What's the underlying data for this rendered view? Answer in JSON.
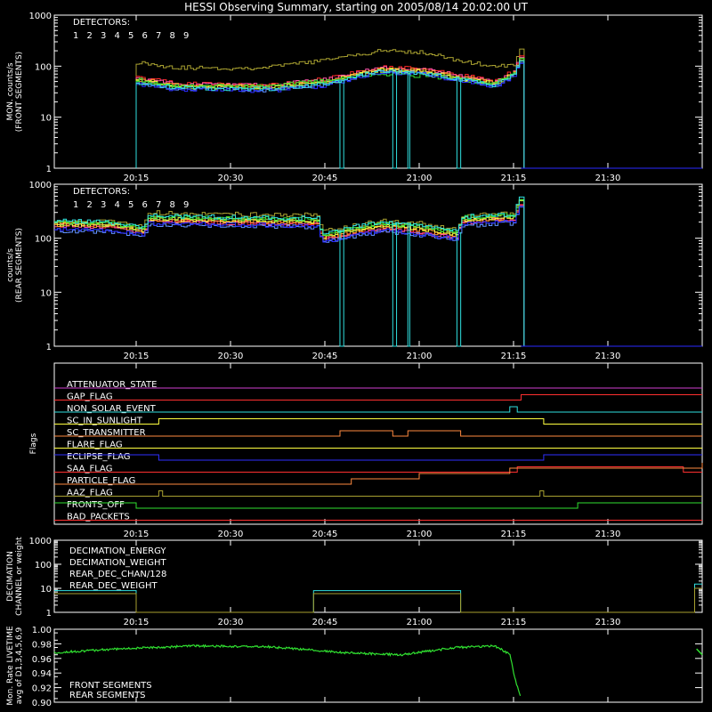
{
  "title": "HESSI Observing Summary, starting on 2005/08/14 20:02:00 UT",
  "colors": {
    "d1": "#ff2a2a",
    "d2": "#ff55aa",
    "d3": "#ff9a2a",
    "d4": "#ffff40",
    "d5": "#b0e040",
    "d6": "#30e030",
    "d7": "#30e0e0",
    "d8": "#6090ff",
    "d9": "#2a2aff",
    "olive": "#a8a030"
  },
  "time_axis": {
    "range_minutes": [
      20.033,
      21.75
    ],
    "tick_labels": [
      "20:15",
      "20:30",
      "20:45",
      "21:00",
      "21:15",
      "21:30"
    ],
    "tick_hours": [
      20.25,
      20.5,
      20.75,
      21.0,
      21.25,
      21.5
    ]
  },
  "chart_data": [
    {
      "type": "line",
      "name": "front",
      "ylabel_lines": [
        "MON. counts/s",
        "(FRONT SEGMENTS)"
      ],
      "yscale": "log",
      "ylim": [
        1,
        1000
      ],
      "yticks": [
        "1",
        "10",
        "100",
        "1000"
      ],
      "legend_title": "DETECTORS:",
      "legend_labels": [
        "1",
        "2",
        "3",
        "4",
        "5",
        "6",
        "7",
        "8",
        "9"
      ],
      "data_start_hour": 20.25,
      "data_end_hour": 21.27,
      "keyframes_hour": [
        20.25,
        20.35,
        20.5,
        20.6,
        20.75,
        20.9,
        21.0,
        21.1,
        21.2,
        21.25,
        21.27
      ],
      "series": [
        {
          "name": "1",
          "values": [
            60,
            46,
            44,
            43,
            55,
            95,
            90,
            68,
            50,
            80,
            170
          ]
        },
        {
          "name": "2",
          "values": [
            58,
            45,
            43,
            42,
            54,
            92,
            87,
            66,
            48,
            78,
            165
          ]
        },
        {
          "name": "3",
          "values": [
            55,
            43,
            41,
            40,
            50,
            88,
            84,
            63,
            46,
            75,
            160
          ]
        },
        {
          "name": "4",
          "values": [
            52,
            40,
            39,
            38,
            48,
            85,
            80,
            60,
            44,
            72,
            150
          ]
        },
        {
          "name": "5",
          "values": [
            50,
            39,
            38,
            37,
            46,
            82,
            78,
            58,
            43,
            70,
            145
          ]
        },
        {
          "name": "6",
          "values": [
            55,
            42,
            40,
            40,
            52,
            70,
            65,
            55,
            45,
            72,
            150
          ]
        },
        {
          "name": "7",
          "values": [
            48,
            38,
            36,
            36,
            44,
            80,
            75,
            56,
            42,
            68,
            140
          ]
        },
        {
          "name": "8",
          "values": [
            45,
            36,
            35,
            34,
            42,
            78,
            72,
            54,
            40,
            66,
            135
          ]
        },
        {
          "name": "9",
          "values": [
            44,
            35,
            34,
            33,
            41,
            76,
            70,
            52,
            39,
            64,
            130
          ]
        },
        {
          "name": "olive",
          "values": [
            120,
            95,
            90,
            95,
            130,
            200,
            190,
            130,
            95,
            110,
            250
          ]
        }
      ],
      "cyan_drop": [
        [
          20.79,
          20.8
        ],
        [
          20.93,
          20.94
        ],
        [
          20.97,
          20.975
        ],
        [
          21.1,
          21.11
        ]
      ]
    },
    {
      "type": "line",
      "name": "rear",
      "ylabel_lines": [
        "counts/s",
        "(REAR SEGMENTS)"
      ],
      "yscale": "log",
      "ylim": [
        1,
        1000
      ],
      "yticks": [
        "1",
        "10",
        "100",
        "1000"
      ],
      "legend_title": "DETECTORS:",
      "legend_labels": [
        "1",
        "2",
        "3",
        "4",
        "5",
        "6",
        "7",
        "8",
        "9"
      ],
      "keyframes_hour": [
        20.033,
        20.2,
        20.27,
        20.28,
        20.5,
        20.73,
        20.74,
        20.9,
        21.0,
        21.1,
        21.11,
        21.25,
        21.27
      ],
      "series": [
        {
          "name": "1",
          "values": [
            175,
            165,
            130,
            210,
            195,
            185,
            95,
            150,
            130,
            105,
            200,
            230,
            520
          ]
        },
        {
          "name": "2",
          "values": [
            170,
            160,
            125,
            205,
            190,
            180,
            92,
            145,
            125,
            100,
            195,
            225,
            510
          ]
        },
        {
          "name": "3",
          "values": [
            180,
            170,
            135,
            220,
            205,
            195,
            100,
            160,
            140,
            110,
            210,
            240,
            540
          ]
        },
        {
          "name": "4",
          "values": [
            185,
            175,
            138,
            230,
            215,
            205,
            105,
            170,
            150,
            115,
            220,
            250,
            560
          ]
        },
        {
          "name": "5",
          "values": [
            190,
            178,
            140,
            240,
            225,
            215,
            110,
            180,
            160,
            120,
            230,
            260,
            580
          ]
        },
        {
          "name": "6",
          "values": [
            200,
            185,
            145,
            250,
            235,
            225,
            115,
            190,
            170,
            125,
            240,
            270,
            600
          ]
        },
        {
          "name": "7",
          "values": [
            210,
            195,
            150,
            260,
            245,
            235,
            120,
            200,
            180,
            130,
            250,
            280,
            620
          ]
        },
        {
          "name": "8",
          "values": [
            140,
            130,
            105,
            180,
            170,
            160,
            80,
            130,
            115,
            90,
            170,
            190,
            430
          ]
        },
        {
          "name": "9",
          "values": [
            150,
            140,
            110,
            190,
            180,
            170,
            85,
            140,
            120,
            95,
            180,
            200,
            450
          ]
        },
        {
          "name": "olive",
          "values": [
            210,
            200,
            160,
            300,
            280,
            270,
            130,
            210,
            190,
            140,
            260,
            290,
            600
          ]
        }
      ],
      "cyan_drop": [
        [
          20.79,
          20.8
        ],
        [
          20.93,
          20.94
        ],
        [
          20.97,
          20.975
        ],
        [
          21.1,
          21.11
        ]
      ]
    },
    {
      "type": "step",
      "name": "flags",
      "ylabel": "Flags",
      "flags": [
        {
          "label": "ATTENUATOR_STATE",
          "color": "#d040d0",
          "steps": [
            [
              20.033,
              0
            ]
          ]
        },
        {
          "label": "GAP_FLAG",
          "color": "#ff3030",
          "steps": [
            [
              20.033,
              0
            ],
            [
              21.27,
              1
            ]
          ]
        },
        {
          "label": "NON_SOLAR_EVENT",
          "color": "#30e0e0",
          "steps": [
            [
              20.033,
              0
            ],
            [
              21.24,
              1
            ],
            [
              21.26,
              0
            ]
          ]
        },
        {
          "label": "SC_IN_SUNLIGHT",
          "color": "#ffff40",
          "steps": [
            [
              20.033,
              0
            ],
            [
              20.31,
              1
            ],
            [
              21.33,
              0
            ]
          ]
        },
        {
          "label": "SC_TRANSMITTER",
          "color": "#ff8a40",
          "steps": [
            [
              20.033,
              0
            ],
            [
              20.79,
              1
            ],
            [
              20.93,
              0
            ],
            [
              20.97,
              1
            ],
            [
              21.11,
              0
            ]
          ]
        },
        {
          "label": "FLARE_FLAG",
          "color": "#ffff40",
          "steps": [
            [
              20.033,
              0
            ]
          ]
        },
        {
          "label": "ECLIPSE_FLAG",
          "color": "#3030ff",
          "steps": [
            [
              20.033,
              1
            ],
            [
              20.31,
              0
            ],
            [
              21.33,
              1
            ]
          ]
        },
        {
          "label": "SAA_FLAG",
          "color": "#ff3030",
          "steps": [
            [
              20.033,
              0
            ],
            [
              21.26,
              1
            ],
            [
              21.7,
              0
            ]
          ]
        },
        {
          "label": "PARTICLE_FLAG",
          "color": "#ff8a40",
          "steps": [
            [
              20.033,
              0
            ],
            [
              20.82,
              1
            ],
            [
              21.0,
              2
            ],
            [
              21.24,
              3
            ],
            [
              21.75,
              4
            ]
          ]
        },
        {
          "label": "AAZ_FLAG",
          "color": "#a8a030",
          "steps": [
            [
              20.033,
              0
            ],
            [
              20.31,
              1
            ],
            [
              20.32,
              0
            ],
            [
              21.32,
              1
            ],
            [
              21.33,
              0
            ]
          ]
        },
        {
          "label": "FRONTS_OFF",
          "color": "#30e030",
          "steps": [
            [
              20.033,
              1
            ],
            [
              20.25,
              0
            ],
            [
              21.42,
              1
            ]
          ]
        },
        {
          "label": "BAD_PACKETS",
          "color": "#ff3030",
          "steps": [
            [
              20.033,
              0
            ]
          ]
        }
      ]
    },
    {
      "type": "step",
      "name": "decimation",
      "ylabel_lines": [
        "DECIMATION",
        "CHANNEL or weight"
      ],
      "yscale": "log",
      "ylim": [
        1,
        1000
      ],
      "yticks": [
        "1",
        "10",
        "100",
        "1000"
      ],
      "legend": [
        {
          "label": "DECIMATION_ENERGY",
          "color": "#30e030"
        },
        {
          "label": "DECIMATION_WEIGHT",
          "color": "#ff8a40"
        },
        {
          "label": "REAR_DEC_CHAN/128",
          "color": "#30e0e0"
        },
        {
          "label": "REAR_DEC_WEIGHT",
          "color": "#a8a030"
        }
      ],
      "series": [
        {
          "name": "REAR_DEC_CHAN/128",
          "steps": [
            [
              20.033,
              8
            ],
            [
              20.25,
              1
            ],
            [
              20.72,
              8
            ],
            [
              21.11,
              1
            ],
            [
              21.73,
              15
            ]
          ]
        },
        {
          "name": "REAR_DEC_WEIGHT",
          "steps": [
            [
              20.033,
              6
            ],
            [
              20.25,
              1
            ],
            [
              20.72,
              6
            ],
            [
              21.11,
              1
            ],
            [
              21.73,
              10
            ]
          ]
        }
      ]
    },
    {
      "type": "line",
      "name": "livetime",
      "ylabel_lines": [
        "Mon. Rate LIVETIME",
        "avg of D1,3,4,5,6,9"
      ],
      "ylim": [
        0.9,
        1.0
      ],
      "yticks": [
        "0.90",
        "0.92",
        "0.94",
        "0.96",
        "0.98",
        "1.00"
      ],
      "legend": [
        {
          "label": "FRONT SEGMENTS",
          "color": "#30e030"
        },
        {
          "label": "REAR SEGMENTS",
          "color": "#208a20"
        }
      ],
      "keyframes_hour": [
        20.033,
        20.2,
        20.4,
        20.6,
        20.8,
        20.95,
        21.1,
        21.2,
        21.24,
        21.255,
        21.27
      ],
      "values": [
        0.968,
        0.973,
        0.977,
        0.976,
        0.968,
        0.965,
        0.975,
        0.977,
        0.966,
        0.93,
        0.905
      ],
      "tail_values": [
        0.973,
        0.965
      ]
    }
  ]
}
